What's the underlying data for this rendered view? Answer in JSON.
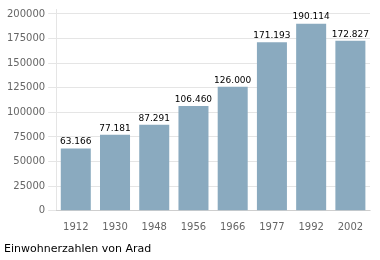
{
  "chart_data": {
    "type": "bar",
    "title": "Einwohnerzahlen von Arad",
    "categories": [
      "1912",
      "1930",
      "1948",
      "1956",
      "1966",
      "1977",
      "1992",
      "2002"
    ],
    "values": [
      63166,
      77181,
      87291,
      106460,
      126000,
      171193,
      190114,
      172827
    ],
    "value_labels": [
      "63.166",
      "77.181",
      "87.291",
      "106.460",
      "126.000",
      "171.193",
      "190.114",
      "172.827"
    ],
    "color": "#8aaabf",
    "ylim": [
      0,
      205000
    ],
    "yticks": [
      0,
      25000,
      50000,
      75000,
      100000,
      125000,
      150000,
      175000,
      200000
    ],
    "grid": true,
    "data_labels": true
  }
}
